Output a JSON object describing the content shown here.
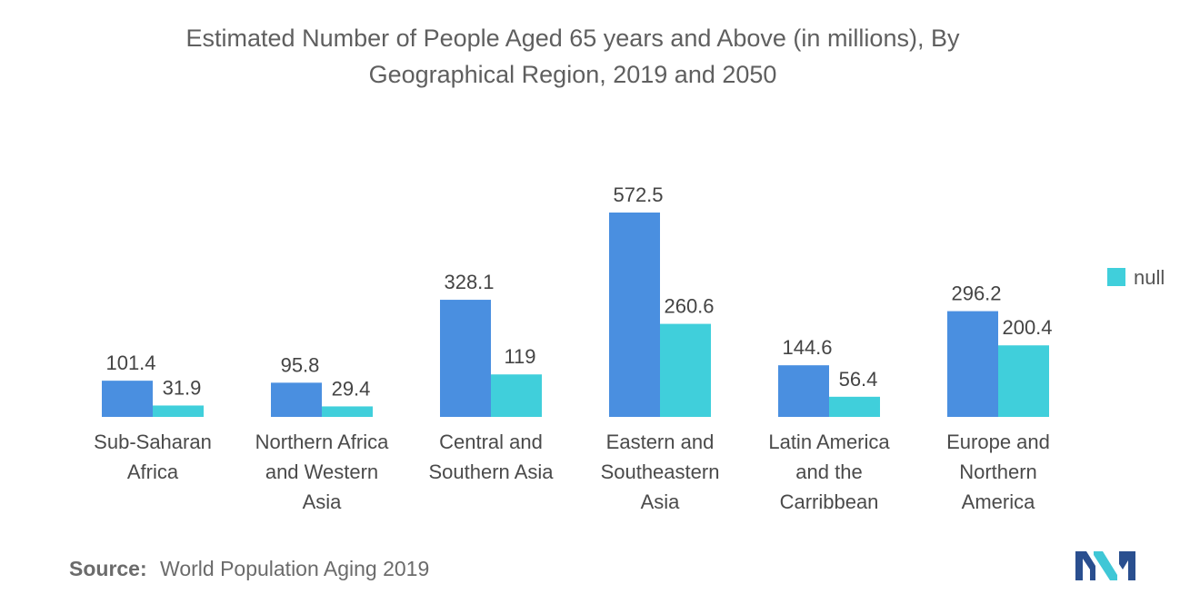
{
  "chart_data": {
    "type": "bar",
    "title": "Estimated Number of People Aged 65 years and Above (in millions), By Geographical Region, 2019 and 2050",
    "title_lines": [
      "Estimated Number of People Aged 65 years and Above (in millions), By",
      "Geographical Region, 2019 and 2050"
    ],
    "categories": [
      [
        "Sub-Saharan",
        "Africa"
      ],
      [
        "Northern Africa",
        "and Western",
        "Asia"
      ],
      [
        "Central and",
        "Southern Asia"
      ],
      [
        "Eastern and",
        "Southeastern",
        "Asia"
      ],
      [
        "Latin America",
        "and the",
        "Carribbean"
      ],
      [
        "Europe and",
        "Northern",
        "America"
      ]
    ],
    "series": [
      {
        "values": [
          101.4,
          95.8,
          328.1,
          572.5,
          144.6,
          296.2
        ],
        "labels": [
          "101.4",
          "95.8",
          "328.1",
          "572.5",
          "144.6",
          "296.2"
        ],
        "color": "#4a8fe0"
      },
      {
        "name": "null",
        "values": [
          31.9,
          29.4,
          119,
          260.6,
          56.4,
          200.4
        ],
        "labels": [
          "31.9",
          "29.4",
          "119",
          "260.6",
          "56.4",
          "200.4"
        ],
        "color": "#40cfdb"
      }
    ],
    "legend": {
      "position": "right",
      "entries": [
        {
          "label": "null",
          "color": "#40cfdb"
        }
      ]
    },
    "ylim": [
      0,
      572.5
    ],
    "grid": false,
    "xlabel": "",
    "ylabel": ""
  },
  "source": {
    "label": "Source:",
    "text": "World Population Aging 2019"
  },
  "logo": {
    "icon": "mordor-intelligence-logo-icon",
    "colors": [
      "#2a4f8f",
      "#3fc7d6"
    ]
  }
}
